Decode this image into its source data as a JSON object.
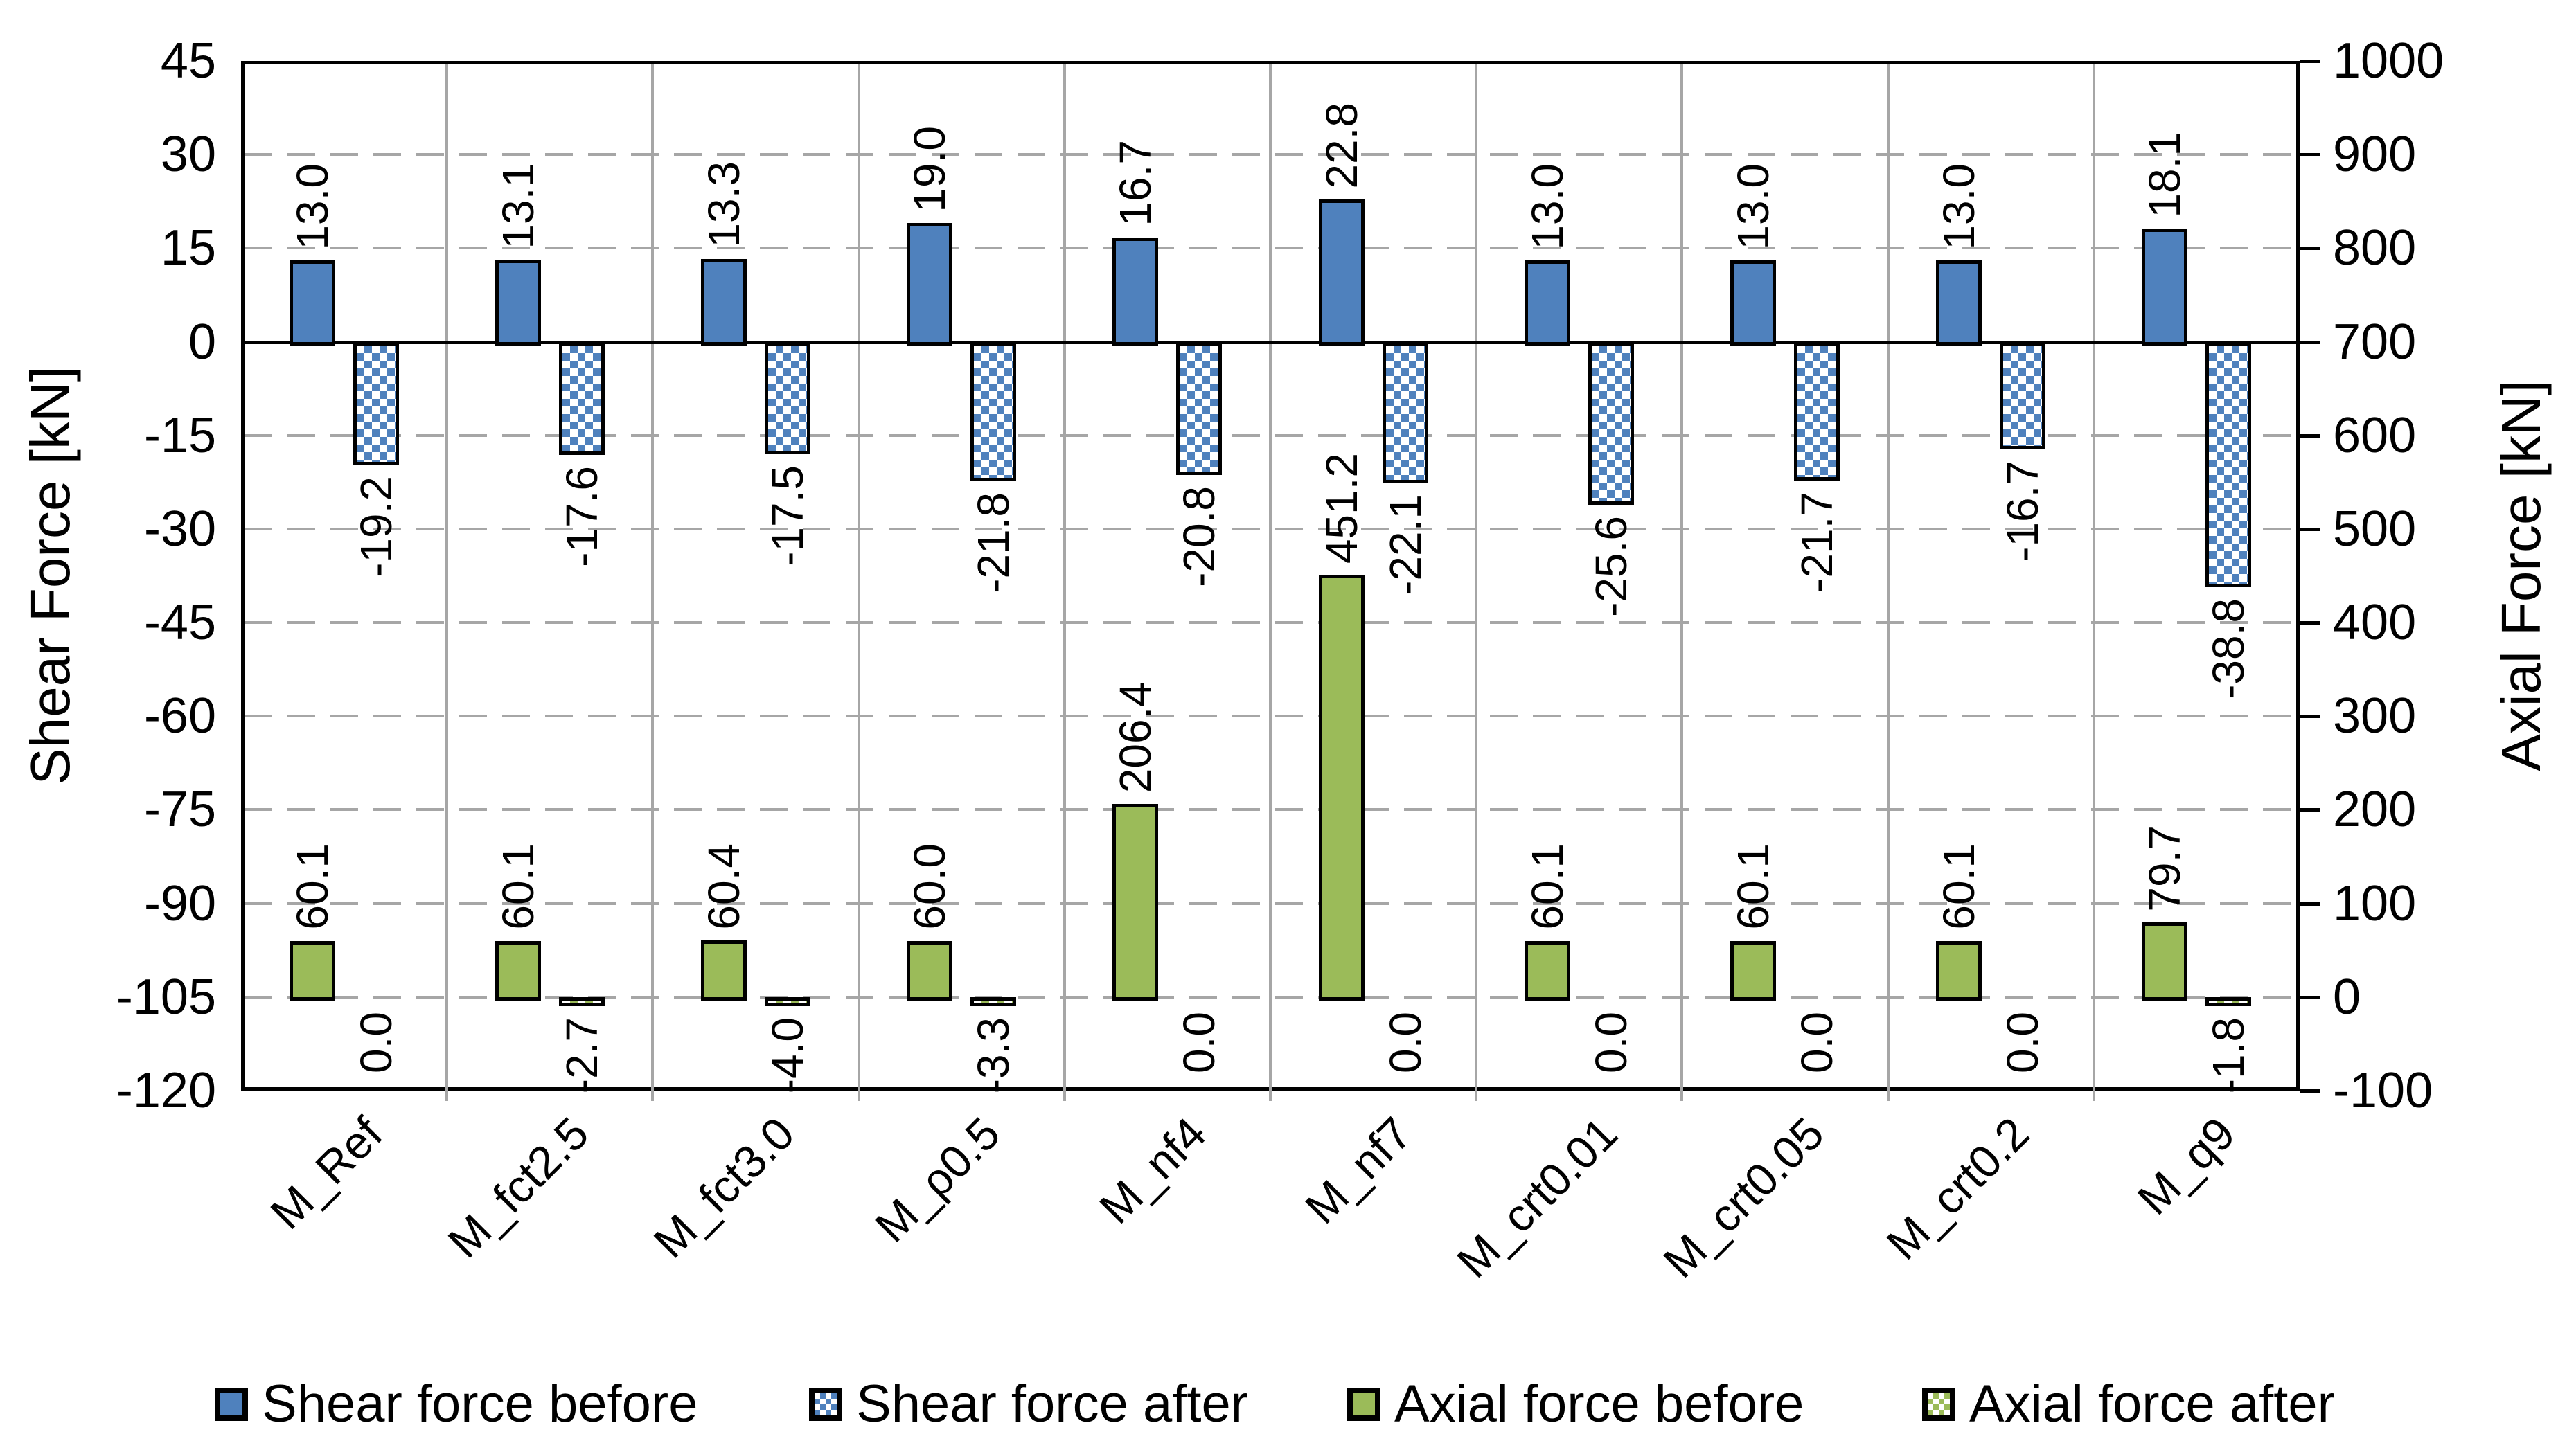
{
  "chart_data": {
    "type": "bar",
    "categories": [
      "M_Ref",
      "M_fct2.5",
      "M_fct3.0",
      "M_ρ0.5",
      "M_nf4",
      "M_nf7",
      "M_crt0.01",
      "M_crt0.05",
      "M_crt0.2",
      "M_q9"
    ],
    "series": [
      {
        "name": "Shear force before",
        "axis": "left",
        "pattern": "solid",
        "slot": "before",
        "color": "#4f81bd",
        "values": [
          13.0,
          13.1,
          13.3,
          19.0,
          16.7,
          22.8,
          13.0,
          13.0,
          13.0,
          18.1
        ]
      },
      {
        "name": "Shear force after",
        "axis": "left",
        "pattern": "checker",
        "slot": "after",
        "color": "#4f81bd",
        "values": [
          -19.2,
          -17.6,
          -17.5,
          -21.8,
          -20.8,
          -22.1,
          -25.6,
          -21.7,
          -16.7,
          -38.8
        ]
      },
      {
        "name": "Axial force before",
        "axis": "right",
        "pattern": "solid",
        "slot": "before",
        "color": "#9bbb59",
        "values": [
          60.1,
          60.1,
          60.4,
          60.0,
          206.4,
          451.2,
          60.1,
          60.1,
          60.1,
          79.7
        ]
      },
      {
        "name": "Axial force after",
        "axis": "right",
        "pattern": "checker",
        "slot": "after",
        "color": "#9bbb59",
        "values": [
          0.0,
          -2.7,
          -4.0,
          -3.3,
          0.0,
          0.0,
          0.0,
          0.0,
          0.0,
          -1.8
        ]
      }
    ],
    "left_axis": {
      "label": "Shear Force [kN]",
      "min": -120,
      "max": 45,
      "step": 15,
      "ticks": [
        45,
        30,
        15,
        0,
        -15,
        -30,
        -45,
        -60,
        -75,
        -90,
        -105,
        -120
      ]
    },
    "right_axis": {
      "label": "Axial Force [kN]",
      "min": -100,
      "max": 1000,
      "step": 100,
      "ticks": [
        1000,
        900,
        800,
        700,
        600,
        500,
        400,
        300,
        200,
        100,
        0,
        -100
      ]
    },
    "grid": true,
    "legend_position": "bottom",
    "label_format": "one-decimal",
    "colors": {
      "grid": "#a6a6a6",
      "separator": "#a6a6a6",
      "axis": "#000000",
      "background": "#ffffff",
      "label_text": "#000000"
    }
  }
}
